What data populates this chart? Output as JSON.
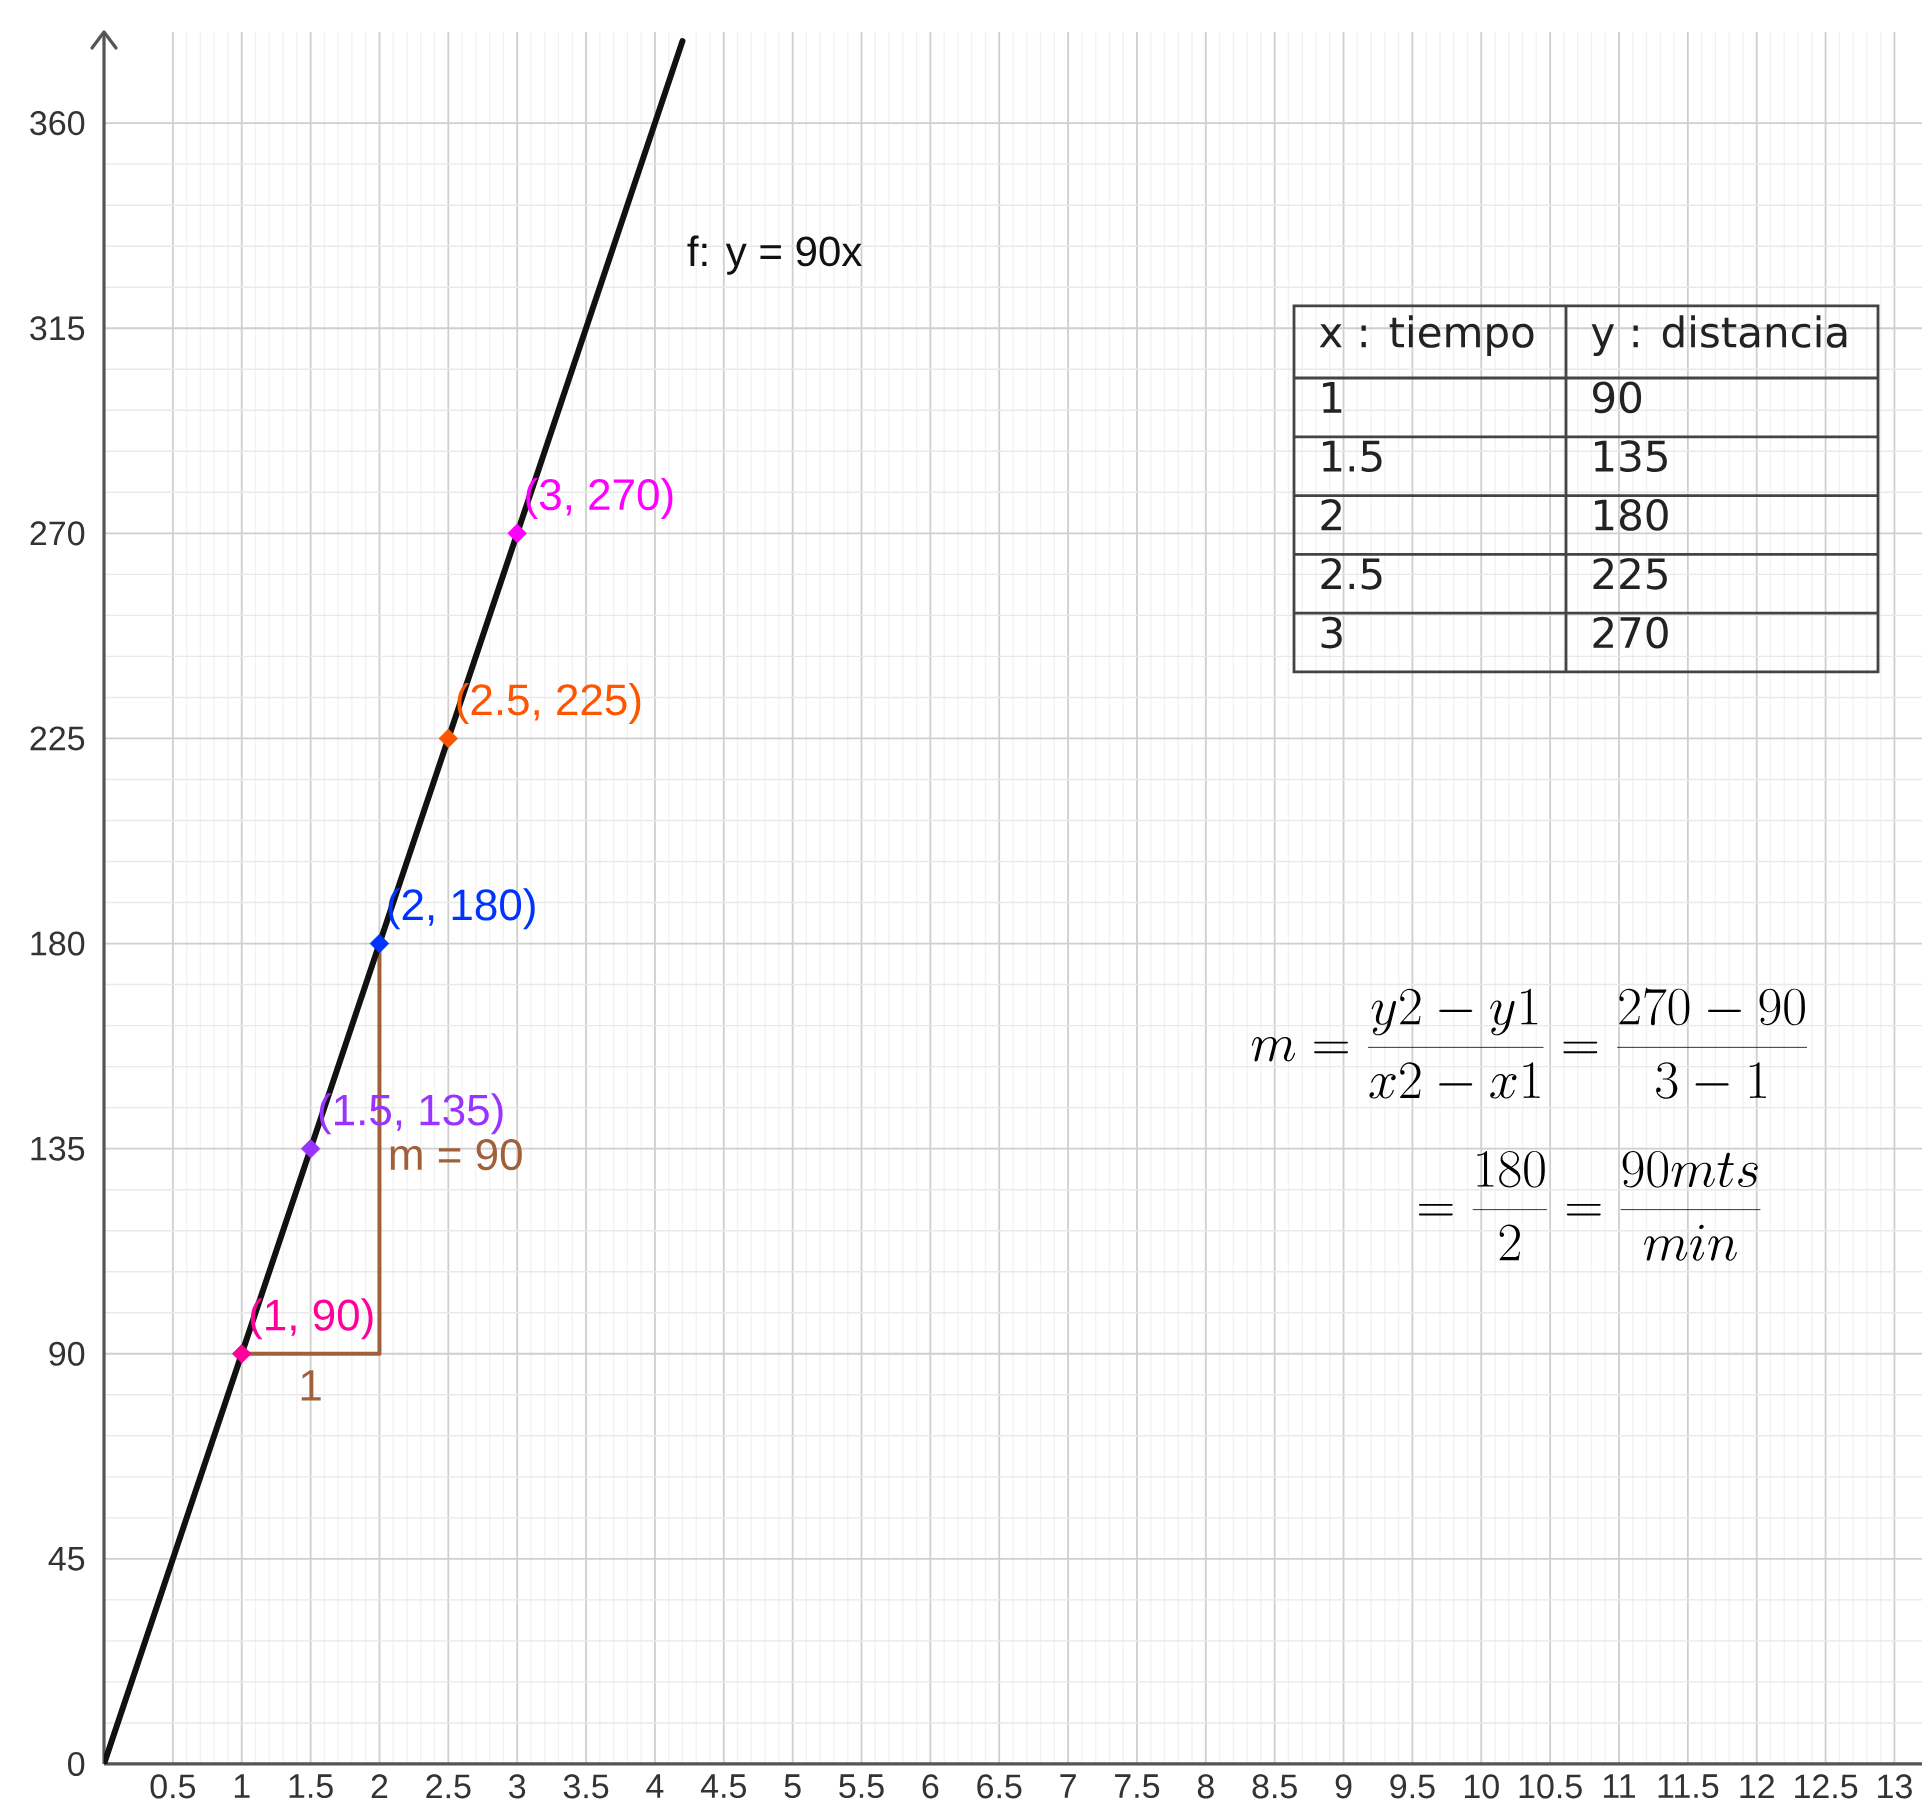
{
  "chart_data": {
    "type": "line",
    "xlim": [
      0,
      13.2
    ],
    "ylim": [
      0,
      380
    ],
    "xticks": [
      0.5,
      1,
      1.5,
      2,
      2.5,
      3,
      3.5,
      4,
      4.5,
      5,
      5.5,
      6,
      6.5,
      7,
      7.5,
      8,
      8.5,
      9,
      9.5,
      10,
      10.5,
      11,
      11.5,
      12,
      12.5,
      13
    ],
    "yticks": [
      0,
      45,
      90,
      135,
      180,
      225,
      270,
      315,
      360
    ],
    "grid": true,
    "series": [
      {
        "name": "m = 90",
        "color": "#a0603a",
        "x": [
          1,
          2,
          2
        ],
        "values": [
          90,
          90,
          180
        ]
      },
      {
        "name": "f: y = 90x",
        "color": "#111111",
        "x": [
          0,
          4.2
        ],
        "values": [
          0,
          378
        ]
      },
      {
        "type": "scatter",
        "marker": "diamond",
        "x": [
          1,
          1.5,
          2,
          2.5,
          3
        ],
        "values": [
          90,
          135,
          180,
          225,
          270
        ],
        "colors": [
          "#ff0099",
          "#9933ff",
          "#0033ff",
          "#ff5500",
          "#ff00ff"
        ],
        "value_labels": [
          "(1, 90)",
          "(1.5, 135)",
          "(2, 180)",
          "(2.5, 225)",
          "(3, 270)"
        ]
      }
    ],
    "annotations": [
      "1",
      "x : tiempo",
      "y : distancia",
      "1",
      "90",
      "1.5",
      "135",
      "2",
      "180",
      "2.5",
      "225",
      "3",
      "270",
      "m = \\frac{y2 - y1}{x2 - x1} = \\frac{270 - 90}{3 - 1}",
      "= \\frac{180}{2} = \\frac{90mts}{min}"
    ]
  }
}
